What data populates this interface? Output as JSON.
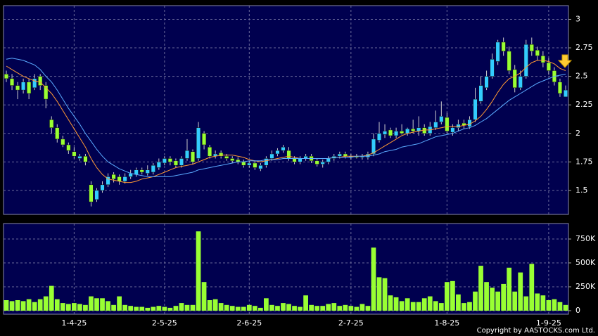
{
  "chart_data": [
    {
      "type": "candlestick",
      "open": [
        2.52,
        2.48,
        2.42,
        2.38,
        2.45,
        2.4,
        2.5,
        2.42,
        2.12,
        2.05,
        1.95,
        1.9,
        1.84,
        1.78,
        1.8,
        1.55,
        1.42,
        1.5,
        1.55,
        1.64,
        1.62,
        1.58,
        1.62,
        1.64,
        1.68,
        1.65,
        1.66,
        1.7,
        1.74,
        1.78,
        1.76,
        1.72,
        1.78,
        1.84,
        1.78,
        2.0,
        1.88,
        1.8,
        1.83,
        1.8,
        1.78,
        1.77,
        1.75,
        1.72,
        1.74,
        1.69,
        1.72,
        1.78,
        1.82,
        1.85,
        1.85,
        1.78,
        1.75,
        1.78,
        1.8,
        1.76,
        1.73,
        1.75,
        1.78,
        1.8,
        1.82,
        1.79,
        1.8,
        1.79,
        1.79,
        1.82,
        1.94,
        1.99,
        2.03,
        1.98,
        2.02,
        2.0,
        2.04,
        2.02,
        2.05,
        2.0,
        2.05,
        2.1,
        2.14,
        2.01,
        2.05,
        2.09,
        2.06,
        2.12,
        2.28,
        2.4,
        2.5,
        2.63,
        2.8,
        2.72,
        2.56,
        2.4,
        2.5,
        2.78,
        2.73,
        2.68,
        2.62,
        2.55,
        2.45,
        2.32
      ],
      "high": [
        2.55,
        2.52,
        2.45,
        2.48,
        2.48,
        2.52,
        2.52,
        2.45,
        2.15,
        2.08,
        1.98,
        1.92,
        1.88,
        1.82,
        1.82,
        1.58,
        1.52,
        1.58,
        1.65,
        1.66,
        1.64,
        1.65,
        1.68,
        1.7,
        1.7,
        1.72,
        1.74,
        1.78,
        1.8,
        1.8,
        1.78,
        1.8,
        1.95,
        1.86,
        2.1,
        2.02,
        1.9,
        1.85,
        1.85,
        1.82,
        1.8,
        1.79,
        1.77,
        1.76,
        1.76,
        1.74,
        1.8,
        1.85,
        1.87,
        1.9,
        1.88,
        1.8,
        1.8,
        1.82,
        1.82,
        1.78,
        1.77,
        1.8,
        1.82,
        1.84,
        1.84,
        1.82,
        1.82,
        1.82,
        1.84,
        2.0,
        2.1,
        2.08,
        2.05,
        2.05,
        2.08,
        2.05,
        2.12,
        2.15,
        2.08,
        2.1,
        2.2,
        2.28,
        2.18,
        2.08,
        2.12,
        2.12,
        2.15,
        2.4,
        2.5,
        2.55,
        2.7,
        2.82,
        2.84,
        2.76,
        2.6,
        2.55,
        2.82,
        2.84,
        2.76,
        2.72,
        2.66,
        2.58,
        2.48,
        2.42
      ],
      "low": [
        2.45,
        2.38,
        2.3,
        2.35,
        2.3,
        2.38,
        2.38,
        2.22,
        2.0,
        1.92,
        1.88,
        1.82,
        1.78,
        1.76,
        1.72,
        1.36,
        1.4,
        1.48,
        1.53,
        1.57,
        1.55,
        1.56,
        1.6,
        1.62,
        1.64,
        1.63,
        1.64,
        1.68,
        1.72,
        1.72,
        1.7,
        1.7,
        1.76,
        1.73,
        1.76,
        1.86,
        1.78,
        1.78,
        1.78,
        1.76,
        1.74,
        1.73,
        1.7,
        1.7,
        1.68,
        1.67,
        1.7,
        1.76,
        1.8,
        1.83,
        1.76,
        1.73,
        1.73,
        1.76,
        1.74,
        1.71,
        1.7,
        1.73,
        1.76,
        1.78,
        1.78,
        1.77,
        1.78,
        1.77,
        1.77,
        1.8,
        1.92,
        1.96,
        1.96,
        1.96,
        1.99,
        1.98,
        2.0,
        1.98,
        1.98,
        1.98,
        2.03,
        2.08,
        2.0,
        1.98,
        2.02,
        2.04,
        2.04,
        2.1,
        2.26,
        2.38,
        2.48,
        2.6,
        2.68,
        2.52,
        2.36,
        2.38,
        2.48,
        2.68,
        2.64,
        2.58,
        2.52,
        2.42,
        2.32,
        2.32
      ],
      "close": [
        2.48,
        2.42,
        2.38,
        2.45,
        2.35,
        2.48,
        2.42,
        2.3,
        2.05,
        1.95,
        1.9,
        1.85,
        1.8,
        1.8,
        1.75,
        1.4,
        1.5,
        1.55,
        1.62,
        1.6,
        1.58,
        1.62,
        1.65,
        1.68,
        1.66,
        1.68,
        1.72,
        1.75,
        1.78,
        1.75,
        1.72,
        1.78,
        1.85,
        1.75,
        2.05,
        1.9,
        1.8,
        1.82,
        1.8,
        1.78,
        1.76,
        1.75,
        1.72,
        1.74,
        1.7,
        1.72,
        1.78,
        1.82,
        1.85,
        1.88,
        1.78,
        1.75,
        1.78,
        1.8,
        1.76,
        1.73,
        1.75,
        1.78,
        1.8,
        1.82,
        1.8,
        1.8,
        1.79,
        1.8,
        1.82,
        1.95,
        2.0,
        2.02,
        1.98,
        2.02,
        2.0,
        2.04,
        2.02,
        2.05,
        2.0,
        2.06,
        2.1,
        2.15,
        2.02,
        2.05,
        2.08,
        2.07,
        2.12,
        2.3,
        2.42,
        2.5,
        2.65,
        2.8,
        2.72,
        2.55,
        2.4,
        2.5,
        2.78,
        2.72,
        2.68,
        2.62,
        2.55,
        2.45,
        2.35,
        2.38
      ],
      "up_color": "#33ccff",
      "down_color": "#99ff33",
      "series": [
        {
          "color": "#ff9933",
          "values": [
            2.59,
            2.56,
            2.53,
            2.5,
            2.48,
            2.46,
            2.45,
            2.4,
            2.35,
            2.28,
            2.2,
            2.12,
            2.04,
            1.96,
            1.88,
            1.78,
            1.7,
            1.64,
            1.6,
            1.59,
            1.58,
            1.57,
            1.57,
            1.58,
            1.6,
            1.61,
            1.62,
            1.64,
            1.66,
            1.68,
            1.7,
            1.71,
            1.72,
            1.73,
            1.75,
            1.77,
            1.79,
            1.8,
            1.81,
            1.81,
            1.81,
            1.8,
            1.79,
            1.77,
            1.76,
            1.75,
            1.76,
            1.77,
            1.78,
            1.79,
            1.8,
            1.79,
            1.78,
            1.78,
            1.78,
            1.78,
            1.78,
            1.78,
            1.79,
            1.79,
            1.8,
            1.8,
            1.8,
            1.8,
            1.81,
            1.83,
            1.86,
            1.89,
            1.92,
            1.95,
            1.98,
            2.0,
            2.01,
            2.02,
            2.03,
            2.03,
            2.04,
            2.05,
            2.06,
            2.06,
            2.06,
            2.07,
            2.08,
            2.11,
            2.15,
            2.21,
            2.28,
            2.36,
            2.43,
            2.48,
            2.5,
            2.53,
            2.58,
            2.62,
            2.64,
            2.64,
            2.63,
            2.61,
            2.57,
            2.55
          ]
        },
        {
          "color": "#5aaaff",
          "values": [
            2.65,
            2.66,
            2.65,
            2.64,
            2.62,
            2.6,
            2.56,
            2.5,
            2.45,
            2.38,
            2.3,
            2.22,
            2.15,
            2.08,
            2.0,
            1.93,
            1.86,
            1.8,
            1.75,
            1.72,
            1.69,
            1.67,
            1.65,
            1.64,
            1.63,
            1.62,
            1.62,
            1.62,
            1.62,
            1.62,
            1.63,
            1.64,
            1.65,
            1.66,
            1.68,
            1.69,
            1.7,
            1.71,
            1.72,
            1.73,
            1.74,
            1.75,
            1.75,
            1.76,
            1.76,
            1.76,
            1.77,
            1.77,
            1.77,
            1.78,
            1.78,
            1.78,
            1.78,
            1.78,
            1.78,
            1.78,
            1.78,
            1.78,
            1.79,
            1.79,
            1.79,
            1.79,
            1.8,
            1.8,
            1.8,
            1.81,
            1.82,
            1.84,
            1.85,
            1.86,
            1.88,
            1.89,
            1.9,
            1.91,
            1.93,
            1.95,
            1.97,
            1.98,
            1.99,
            2.0,
            2.02,
            2.04,
            2.05,
            2.07,
            2.1,
            2.13,
            2.17,
            2.21,
            2.25,
            2.29,
            2.32,
            2.35,
            2.38,
            2.41,
            2.44,
            2.46,
            2.48,
            2.5,
            2.51,
            2.52
          ]
        }
      ],
      "ylim": [
        1.29,
        3.12
      ],
      "yticks": [
        1.5,
        1.75,
        2,
        2.25,
        2.5,
        2.75,
        3
      ],
      "grid": true
    },
    {
      "type": "bar",
      "categories": [
        null,
        null,
        null,
        null,
        null,
        null,
        null,
        null,
        null,
        null,
        null,
        null,
        "1-4-25",
        null,
        null,
        null,
        null,
        null,
        null,
        null,
        null,
        null,
        null,
        null,
        null,
        null,
        null,
        null,
        "2-5-25",
        null,
        null,
        null,
        null,
        null,
        null,
        null,
        null,
        null,
        null,
        null,
        null,
        null,
        null,
        "2-6-25",
        null,
        null,
        null,
        null,
        null,
        null,
        null,
        null,
        null,
        null,
        null,
        null,
        null,
        null,
        null,
        null,
        null,
        "2-7-25",
        null,
        null,
        null,
        null,
        null,
        null,
        null,
        null,
        null,
        null,
        null,
        null,
        null,
        null,
        null,
        null,
        "1-8-25",
        null,
        null,
        null,
        null,
        null,
        null,
        null,
        null,
        null,
        null,
        null,
        null,
        null,
        null,
        null,
        null,
        null,
        "1-9-25",
        null,
        null,
        null
      ],
      "values": [
        110000,
        100000,
        110000,
        100000,
        120000,
        90000,
        120000,
        150000,
        260000,
        120000,
        80000,
        70000,
        80000,
        70000,
        60000,
        150000,
        130000,
        130000,
        100000,
        60000,
        150000,
        60000,
        50000,
        40000,
        40000,
        30000,
        40000,
        50000,
        40000,
        30000,
        50000,
        80000,
        60000,
        60000,
        830000,
        300000,
        110000,
        120000,
        80000,
        60000,
        50000,
        40000,
        40000,
        60000,
        50000,
        30000,
        130000,
        60000,
        50000,
        80000,
        70000,
        50000,
        40000,
        160000,
        60000,
        50000,
        50000,
        70000,
        80000,
        50000,
        60000,
        50000,
        40000,
        70000,
        50000,
        660000,
        350000,
        340000,
        160000,
        140000,
        100000,
        130000,
        90000,
        90000,
        130000,
        150000,
        100000,
        80000,
        300000,
        310000,
        170000,
        80000,
        90000,
        200000,
        470000,
        300000,
        240000,
        200000,
        280000,
        450000,
        200000,
        400000,
        150000,
        490000,
        180000,
        160000,
        110000,
        120000,
        90000,
        60000
      ],
      "color": "#99ff33",
      "ylim": [
        -37000,
        912000
      ],
      "yticks": [
        0,
        {
          "value": 250000,
          "label": "250K"
        },
        {
          "value": 500000,
          "label": "500K"
        },
        {
          "value": 750000,
          "label": "750K"
        }
      ],
      "grid": true,
      "footer": "Copyright by AASTOCKS.com Ltd."
    }
  ]
}
